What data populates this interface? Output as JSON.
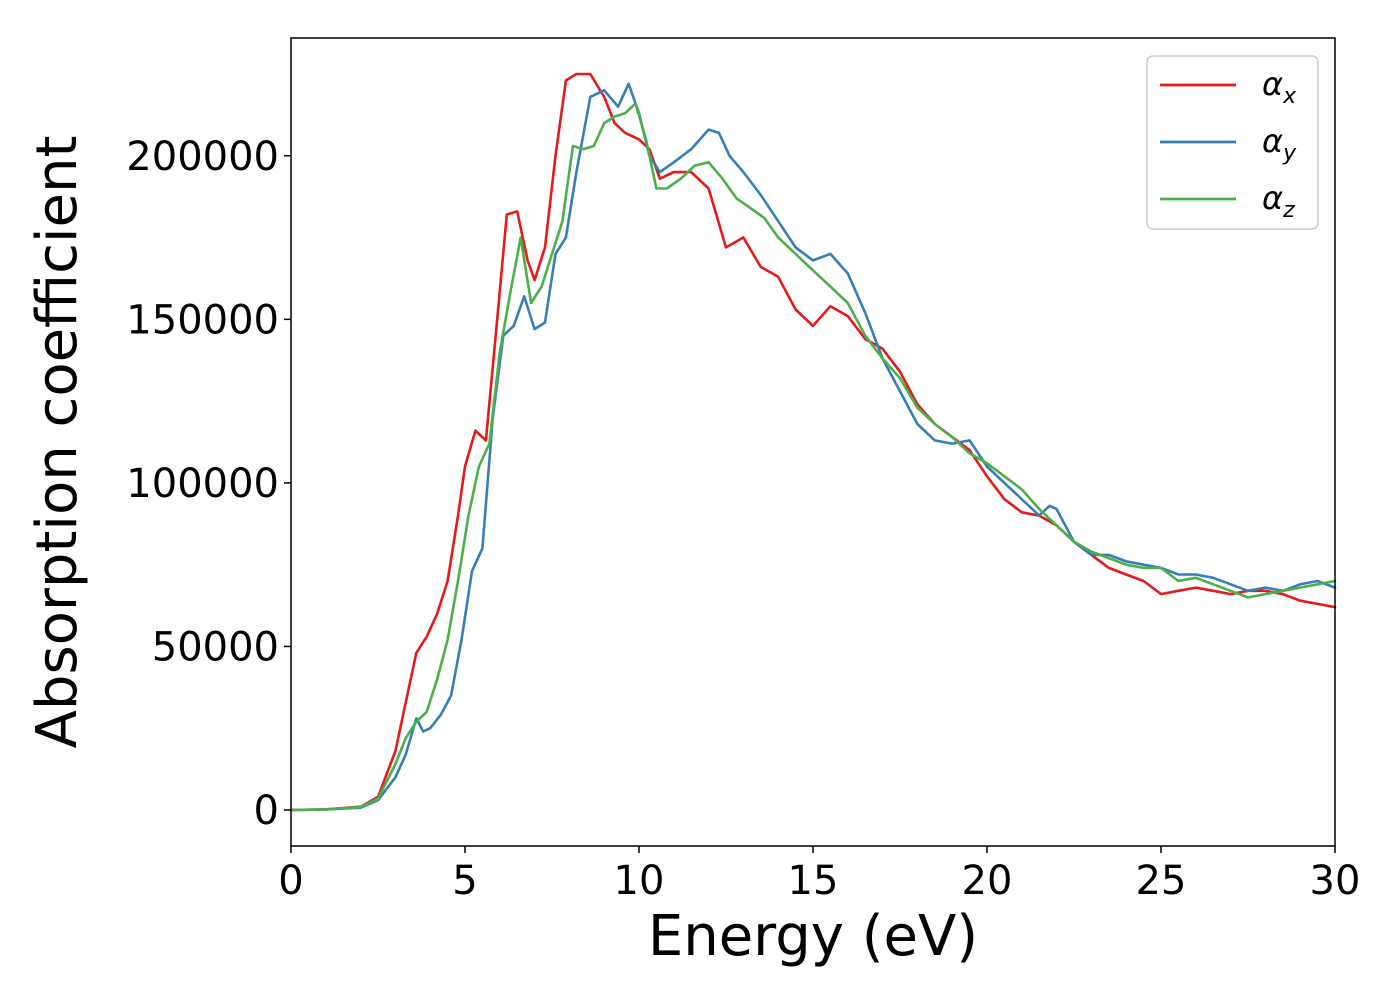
{
  "chart_data": {
    "type": "line",
    "xlabel": "Energy (eV)",
    "ylabel": "Absorption coefficient",
    "xlim": [
      0,
      30
    ],
    "ylim": [
      -11000,
      236000
    ],
    "xticks": [
      0,
      5,
      10,
      15,
      20,
      25,
      30
    ],
    "yticks": [
      0,
      50000,
      100000,
      150000,
      200000
    ],
    "grid": false,
    "legend_position": "top-right",
    "series": [
      {
        "name": "α_x",
        "label_main": "α",
        "label_sub": "x",
        "color": "#e41a1c",
        "x": [
          0,
          1,
          2,
          2.5,
          3,
          3.3,
          3.6,
          3.9,
          4.2,
          4.5,
          4.8,
          5.0,
          5.3,
          5.6,
          5.9,
          6.2,
          6.5,
          6.8,
          7.0,
          7.3,
          7.6,
          7.9,
          8.2,
          8.6,
          9.0,
          9.3,
          9.6,
          10.0,
          10.3,
          10.6,
          11.0,
          11.5,
          12.0,
          12.5,
          13.0,
          13.5,
          14.0,
          14.5,
          15.0,
          15.5,
          16.0,
          16.5,
          17.0,
          17.5,
          18.0,
          18.5,
          19.0,
          19.5,
          20.0,
          20.5,
          21.0,
          21.5,
          22.0,
          22.5,
          23.0,
          23.5,
          24.0,
          24.5,
          25.0,
          25.5,
          26.0,
          26.5,
          27.0,
          27.5,
          28.0,
          28.5,
          29.0,
          29.5,
          30.0
        ],
        "y": [
          0,
          200,
          1000,
          4000,
          18000,
          33000,
          48000,
          53000,
          60000,
          70000,
          90000,
          105000,
          116000,
          113000,
          147000,
          182000,
          183000,
          168000,
          162000,
          172000,
          200000,
          223000,
          225000,
          225000,
          218000,
          210000,
          207000,
          205000,
          202000,
          193000,
          195000,
          195000,
          190000,
          172000,
          175000,
          166000,
          163000,
          153000,
          148000,
          154000,
          151000,
          144000,
          141000,
          134000,
          124000,
          118000,
          114000,
          110000,
          102000,
          95000,
          91000,
          90000,
          87000,
          82000,
          78000,
          74000,
          72000,
          70000,
          66000,
          67000,
          68000,
          67000,
          66000,
          67000,
          67000,
          66000,
          64000,
          63000,
          62000
        ]
      },
      {
        "name": "α_y",
        "label_main": "α",
        "label_sub": "y",
        "color": "#377eb8",
        "x": [
          0,
          1,
          2,
          2.5,
          3,
          3.3,
          3.6,
          3.8,
          4.0,
          4.3,
          4.6,
          4.9,
          5.2,
          5.5,
          5.8,
          6.1,
          6.4,
          6.7,
          7.0,
          7.3,
          7.6,
          7.9,
          8.2,
          8.6,
          9.0,
          9.4,
          9.7,
          10.0,
          10.3,
          10.6,
          11.0,
          11.5,
          12.0,
          12.3,
          12.6,
          13.0,
          13.5,
          14.0,
          14.5,
          15.0,
          15.5,
          16.0,
          16.5,
          17.0,
          17.5,
          18.0,
          18.5,
          19.0,
          19.5,
          20.0,
          20.5,
          21.0,
          21.5,
          21.8,
          22.0,
          22.5,
          23.0,
          23.5,
          24.0,
          24.5,
          25.0,
          25.5,
          26.0,
          26.5,
          27.0,
          27.5,
          28.0,
          28.5,
          29.0,
          29.5,
          30.0
        ],
        "y": [
          0,
          200,
          700,
          3000,
          10000,
          17000,
          28000,
          24000,
          25000,
          29000,
          35000,
          52000,
          73000,
          80000,
          120000,
          145000,
          148000,
          157000,
          147000,
          149000,
          170000,
          175000,
          195000,
          218000,
          220000,
          215000,
          222000,
          213000,
          200000,
          195000,
          198000,
          202000,
          208000,
          207000,
          200000,
          195000,
          188000,
          180000,
          172000,
          168000,
          170000,
          164000,
          152000,
          138000,
          128000,
          118000,
          113000,
          112000,
          113000,
          105000,
          100000,
          95000,
          90000,
          93000,
          92000,
          82000,
          78000,
          78000,
          76000,
          75000,
          74000,
          72000,
          72000,
          71000,
          69000,
          67000,
          68000,
          67000,
          69000,
          70000,
          68000
        ]
      },
      {
        "name": "α_z",
        "label_main": "α",
        "label_sub": "z",
        "color": "#4daf4a",
        "x": [
          0,
          1,
          2,
          2.5,
          3,
          3.3,
          3.6,
          3.9,
          4.2,
          4.5,
          4.8,
          5.1,
          5.4,
          5.7,
          6.0,
          6.3,
          6.6,
          6.9,
          7.2,
          7.5,
          7.8,
          8.1,
          8.4,
          8.7,
          9.0,
          9.3,
          9.6,
          9.9,
          10.2,
          10.5,
          10.8,
          11.2,
          11.6,
          12.0,
          12.4,
          12.8,
          13.2,
          13.6,
          14.0,
          14.5,
          15.0,
          15.5,
          16.0,
          16.5,
          17.0,
          17.5,
          18.0,
          18.5,
          19.0,
          19.5,
          20.0,
          20.5,
          21.0,
          21.5,
          22.0,
          22.5,
          23.0,
          23.5,
          24.0,
          24.5,
          25.0,
          25.5,
          26.0,
          26.5,
          27.0,
          27.5,
          28.0,
          28.5,
          29.0,
          29.5,
          30.0
        ],
        "y": [
          0,
          200,
          900,
          3500,
          14000,
          22000,
          27000,
          30000,
          40000,
          52000,
          70000,
          90000,
          105000,
          112000,
          140000,
          158000,
          175000,
          155000,
          160000,
          170000,
          180000,
          203000,
          202000,
          203000,
          210000,
          212000,
          213000,
          216000,
          205000,
          190000,
          190000,
          193000,
          197000,
          198000,
          193000,
          187000,
          184000,
          181000,
          175000,
          170000,
          165000,
          160000,
          155000,
          145000,
          138000,
          132000,
          123000,
          118000,
          114000,
          109000,
          106000,
          102000,
          98000,
          92000,
          87000,
          82000,
          79000,
          77000,
          75000,
          74000,
          74000,
          70000,
          71000,
          69000,
          67000,
          65000,
          66000,
          67000,
          68000,
          69000,
          70000
        ]
      }
    ]
  }
}
